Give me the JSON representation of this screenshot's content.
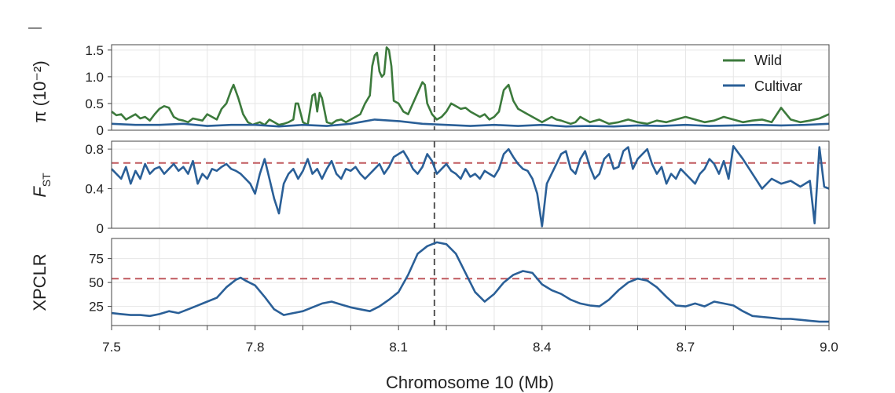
{
  "chart_data": [
    {
      "panel": "pi",
      "type": "line",
      "ylabel": "π (10⁻²)",
      "ylim": [
        0,
        1.6
      ],
      "yticks": [
        "1.5",
        "1.0",
        "0.5",
        "0"
      ],
      "ytick_values": [
        1.5,
        1.0,
        0.5,
        0
      ],
      "legend_position": "top-right",
      "series": [
        {
          "name": "Wild",
          "color": "#3c7a3c",
          "x": [
            7.5,
            7.51,
            7.52,
            7.53,
            7.54,
            7.55,
            7.56,
            7.57,
            7.58,
            7.59,
            7.6,
            7.61,
            7.62,
            7.63,
            7.64,
            7.65,
            7.66,
            7.67,
            7.68,
            7.69,
            7.7,
            7.71,
            7.72,
            7.73,
            7.74,
            7.75,
            7.755,
            7.765,
            7.775,
            7.785,
            7.795,
            7.8,
            7.81,
            7.82,
            7.83,
            7.84,
            7.85,
            7.86,
            7.87,
            7.88,
            7.885,
            7.89,
            7.9,
            7.91,
            7.92,
            7.925,
            7.93,
            7.935,
            7.94,
            7.95,
            7.96,
            7.97,
            7.98,
            7.99,
            8.0,
            8.01,
            8.02,
            8.03,
            8.04,
            8.045,
            8.05,
            8.055,
            8.06,
            8.065,
            8.07,
            8.075,
            8.08,
            8.085,
            8.09,
            8.1,
            8.11,
            8.12,
            8.13,
            8.14,
            8.15,
            8.155,
            8.16,
            8.17,
            8.18,
            8.19,
            8.2,
            8.21,
            8.22,
            8.23,
            8.24,
            8.25,
            8.26,
            8.27,
            8.28,
            8.29,
            8.3,
            8.31,
            8.32,
            8.33,
            8.34,
            8.35,
            8.36,
            8.37,
            8.38,
            8.39,
            8.4,
            8.41,
            8.42,
            8.43,
            8.44,
            8.45,
            8.46,
            8.47,
            8.48,
            8.49,
            8.5,
            8.52,
            8.54,
            8.56,
            8.58,
            8.6,
            8.62,
            8.64,
            8.66,
            8.68,
            8.7,
            8.72,
            8.74,
            8.76,
            8.78,
            8.8,
            8.82,
            8.84,
            8.86,
            8.88,
            8.9,
            8.92,
            8.94,
            8.96,
            8.98,
            9.0
          ],
          "values": [
            0.35,
            0.28,
            0.3,
            0.2,
            0.25,
            0.3,
            0.22,
            0.25,
            0.18,
            0.3,
            0.4,
            0.45,
            0.42,
            0.25,
            0.2,
            0.18,
            0.15,
            0.22,
            0.2,
            0.18,
            0.3,
            0.25,
            0.2,
            0.4,
            0.5,
            0.75,
            0.85,
            0.6,
            0.3,
            0.15,
            0.1,
            0.12,
            0.15,
            0.1,
            0.2,
            0.15,
            0.1,
            0.12,
            0.15,
            0.2,
            0.5,
            0.5,
            0.15,
            0.1,
            0.65,
            0.68,
            0.35,
            0.7,
            0.6,
            0.15,
            0.12,
            0.18,
            0.2,
            0.15,
            0.2,
            0.25,
            0.3,
            0.5,
            0.65,
            1.2,
            1.4,
            1.45,
            1.1,
            1.0,
            1.05,
            1.55,
            1.5,
            1.2,
            0.55,
            0.5,
            0.35,
            0.3,
            0.5,
            0.7,
            0.9,
            0.85,
            0.5,
            0.3,
            0.2,
            0.25,
            0.35,
            0.5,
            0.45,
            0.4,
            0.42,
            0.35,
            0.3,
            0.25,
            0.3,
            0.2,
            0.25,
            0.35,
            0.75,
            0.85,
            0.55,
            0.4,
            0.35,
            0.3,
            0.25,
            0.2,
            0.15,
            0.2,
            0.25,
            0.2,
            0.18,
            0.15,
            0.12,
            0.15,
            0.25,
            0.2,
            0.15,
            0.2,
            0.12,
            0.15,
            0.2,
            0.15,
            0.12,
            0.18,
            0.15,
            0.2,
            0.25,
            0.2,
            0.15,
            0.18,
            0.25,
            0.2,
            0.15,
            0.18,
            0.2,
            0.15,
            0.42,
            0.2,
            0.15,
            0.18,
            0.22,
            0.3
          ]
        },
        {
          "name": "Cultivar",
          "color": "#2a5f97",
          "x": [
            7.5,
            7.55,
            7.6,
            7.65,
            7.7,
            7.75,
            7.8,
            7.85,
            7.9,
            7.95,
            8.0,
            8.05,
            8.1,
            8.15,
            8.2,
            8.25,
            8.3,
            8.35,
            8.4,
            8.45,
            8.5,
            8.55,
            8.6,
            8.65,
            8.7,
            8.75,
            8.8,
            8.85,
            8.9,
            8.95,
            9.0
          ],
          "values": [
            0.12,
            0.1,
            0.1,
            0.12,
            0.08,
            0.1,
            0.1,
            0.07,
            0.1,
            0.08,
            0.12,
            0.2,
            0.17,
            0.12,
            0.1,
            0.08,
            0.1,
            0.08,
            0.1,
            0.07,
            0.08,
            0.07,
            0.09,
            0.08,
            0.1,
            0.08,
            0.09,
            0.1,
            0.09,
            0.1,
            0.12
          ]
        }
      ]
    },
    {
      "panel": "fst",
      "type": "line",
      "ylabel": "F_ST",
      "ylim": [
        0,
        0.88
      ],
      "yticks": [
        "0.8",
        "0.4",
        "0"
      ],
      "ytick_values": [
        0.8,
        0.4,
        0
      ],
      "threshold": 0.66,
      "series": [
        {
          "name": "",
          "color": "#2a5f97",
          "x": [
            7.5,
            7.51,
            7.52,
            7.53,
            7.54,
            7.55,
            7.56,
            7.57,
            7.58,
            7.59,
            7.6,
            7.61,
            7.62,
            7.63,
            7.64,
            7.65,
            7.66,
            7.67,
            7.68,
            7.69,
            7.7,
            7.71,
            7.72,
            7.73,
            7.74,
            7.75,
            7.76,
            7.77,
            7.78,
            7.79,
            7.8,
            7.81,
            7.82,
            7.83,
            7.84,
            7.85,
            7.86,
            7.87,
            7.88,
            7.89,
            7.9,
            7.91,
            7.92,
            7.93,
            7.94,
            7.95,
            7.96,
            7.97,
            7.98,
            7.99,
            8.0,
            8.01,
            8.02,
            8.03,
            8.04,
            8.05,
            8.06,
            8.07,
            8.08,
            8.09,
            8.1,
            8.11,
            8.12,
            8.13,
            8.14,
            8.15,
            8.16,
            8.17,
            8.18,
            8.19,
            8.2,
            8.21,
            8.22,
            8.23,
            8.24,
            8.25,
            8.26,
            8.27,
            8.28,
            8.29,
            8.3,
            8.31,
            8.32,
            8.33,
            8.34,
            8.35,
            8.36,
            8.37,
            8.38,
            8.39,
            8.4,
            8.41,
            8.42,
            8.43,
            8.44,
            8.45,
            8.46,
            8.47,
            8.48,
            8.49,
            8.5,
            8.51,
            8.52,
            8.53,
            8.54,
            8.55,
            8.56,
            8.57,
            8.58,
            8.59,
            8.6,
            8.61,
            8.62,
            8.63,
            8.64,
            8.65,
            8.66,
            8.67,
            8.68,
            8.69,
            8.7,
            8.71,
            8.72,
            8.73,
            8.74,
            8.75,
            8.76,
            8.77,
            8.78,
            8.79,
            8.8,
            8.82,
            8.84,
            8.86,
            8.88,
            8.9,
            8.92,
            8.94,
            8.96,
            8.97,
            8.98,
            8.99,
            9.0
          ],
          "values": [
            0.6,
            0.55,
            0.5,
            0.62,
            0.45,
            0.58,
            0.5,
            0.65,
            0.55,
            0.6,
            0.62,
            0.55,
            0.6,
            0.65,
            0.58,
            0.62,
            0.55,
            0.68,
            0.45,
            0.55,
            0.5,
            0.6,
            0.58,
            0.62,
            0.65,
            0.6,
            0.58,
            0.55,
            0.5,
            0.45,
            0.35,
            0.55,
            0.7,
            0.5,
            0.3,
            0.15,
            0.45,
            0.55,
            0.6,
            0.5,
            0.58,
            0.7,
            0.55,
            0.6,
            0.5,
            0.6,
            0.68,
            0.55,
            0.5,
            0.6,
            0.58,
            0.62,
            0.55,
            0.5,
            0.55,
            0.6,
            0.65,
            0.55,
            0.62,
            0.72,
            0.75,
            0.78,
            0.7,
            0.6,
            0.55,
            0.62,
            0.75,
            0.68,
            0.55,
            0.6,
            0.65,
            0.58,
            0.55,
            0.5,
            0.6,
            0.52,
            0.55,
            0.5,
            0.58,
            0.55,
            0.52,
            0.6,
            0.75,
            0.8,
            0.72,
            0.65,
            0.6,
            0.58,
            0.5,
            0.35,
            0.02,
            0.45,
            0.55,
            0.65,
            0.75,
            0.78,
            0.6,
            0.55,
            0.7,
            0.78,
            0.62,
            0.5,
            0.55,
            0.7,
            0.75,
            0.6,
            0.62,
            0.78,
            0.82,
            0.6,
            0.7,
            0.75,
            0.8,
            0.65,
            0.55,
            0.62,
            0.45,
            0.55,
            0.5,
            0.6,
            0.55,
            0.5,
            0.45,
            0.55,
            0.6,
            0.7,
            0.65,
            0.55,
            0.68,
            0.5,
            0.83,
            0.7,
            0.55,
            0.4,
            0.5,
            0.45,
            0.48,
            0.42,
            0.48,
            0.05,
            0.82,
            0.42,
            0.4
          ]
        }
      ]
    },
    {
      "panel": "xpclr",
      "type": "line",
      "ylabel": "XPCLR",
      "ylim": [
        5,
        96
      ],
      "yticks": [
        "75",
        "50",
        "25"
      ],
      "ytick_values": [
        75,
        50,
        25
      ],
      "threshold": 54,
      "series": [
        {
          "name": "",
          "color": "#2a5f97",
          "x": [
            7.5,
            7.52,
            7.54,
            7.56,
            7.58,
            7.6,
            7.62,
            7.64,
            7.66,
            7.68,
            7.7,
            7.72,
            7.74,
            7.76,
            7.77,
            7.78,
            7.8,
            7.82,
            7.84,
            7.86,
            7.88,
            7.9,
            7.92,
            7.94,
            7.96,
            7.98,
            8.0,
            8.02,
            8.04,
            8.06,
            8.08,
            8.1,
            8.12,
            8.14,
            8.16,
            8.18,
            8.2,
            8.22,
            8.24,
            8.26,
            8.28,
            8.3,
            8.32,
            8.34,
            8.36,
            8.38,
            8.4,
            8.42,
            8.44,
            8.46,
            8.48,
            8.5,
            8.52,
            8.54,
            8.56,
            8.58,
            8.6,
            8.62,
            8.64,
            8.66,
            8.68,
            8.7,
            8.72,
            8.74,
            8.76,
            8.78,
            8.8,
            8.82,
            8.84,
            8.86,
            8.88,
            8.9,
            8.92,
            8.94,
            8.96,
            8.98,
            9.0
          ],
          "values": [
            18,
            17,
            16,
            16,
            15,
            17,
            20,
            18,
            22,
            26,
            30,
            34,
            45,
            53,
            55,
            52,
            47,
            35,
            22,
            16,
            18,
            20,
            24,
            28,
            30,
            27,
            24,
            22,
            20,
            25,
            32,
            40,
            58,
            80,
            88,
            92,
            90,
            80,
            60,
            40,
            30,
            38,
            50,
            58,
            62,
            60,
            48,
            42,
            38,
            32,
            28,
            26,
            25,
            32,
            42,
            50,
            54,
            52,
            45,
            35,
            26,
            25,
            28,
            25,
            30,
            28,
            26,
            20,
            15,
            14,
            13,
            12,
            12,
            11,
            10,
            9,
            9
          ]
        }
      ]
    }
  ],
  "shared_axis": {
    "xlabel": "Chromosome 10 (Mb)",
    "xlim": [
      7.5,
      9.0
    ],
    "xticks": [
      "7.5",
      "7.8",
      "8.1",
      "8.4",
      "8.7",
      "9.0"
    ],
    "xtick_values": [
      7.5,
      7.8,
      8.1,
      8.4,
      8.7,
      9.0
    ],
    "marker_line_x": 8.175
  },
  "colors": {
    "wild": "#3c7a3c",
    "cultivar": "#2a5f97",
    "threshold": "#c0595e",
    "marker_line": "#555555"
  },
  "stray_mark": "—"
}
